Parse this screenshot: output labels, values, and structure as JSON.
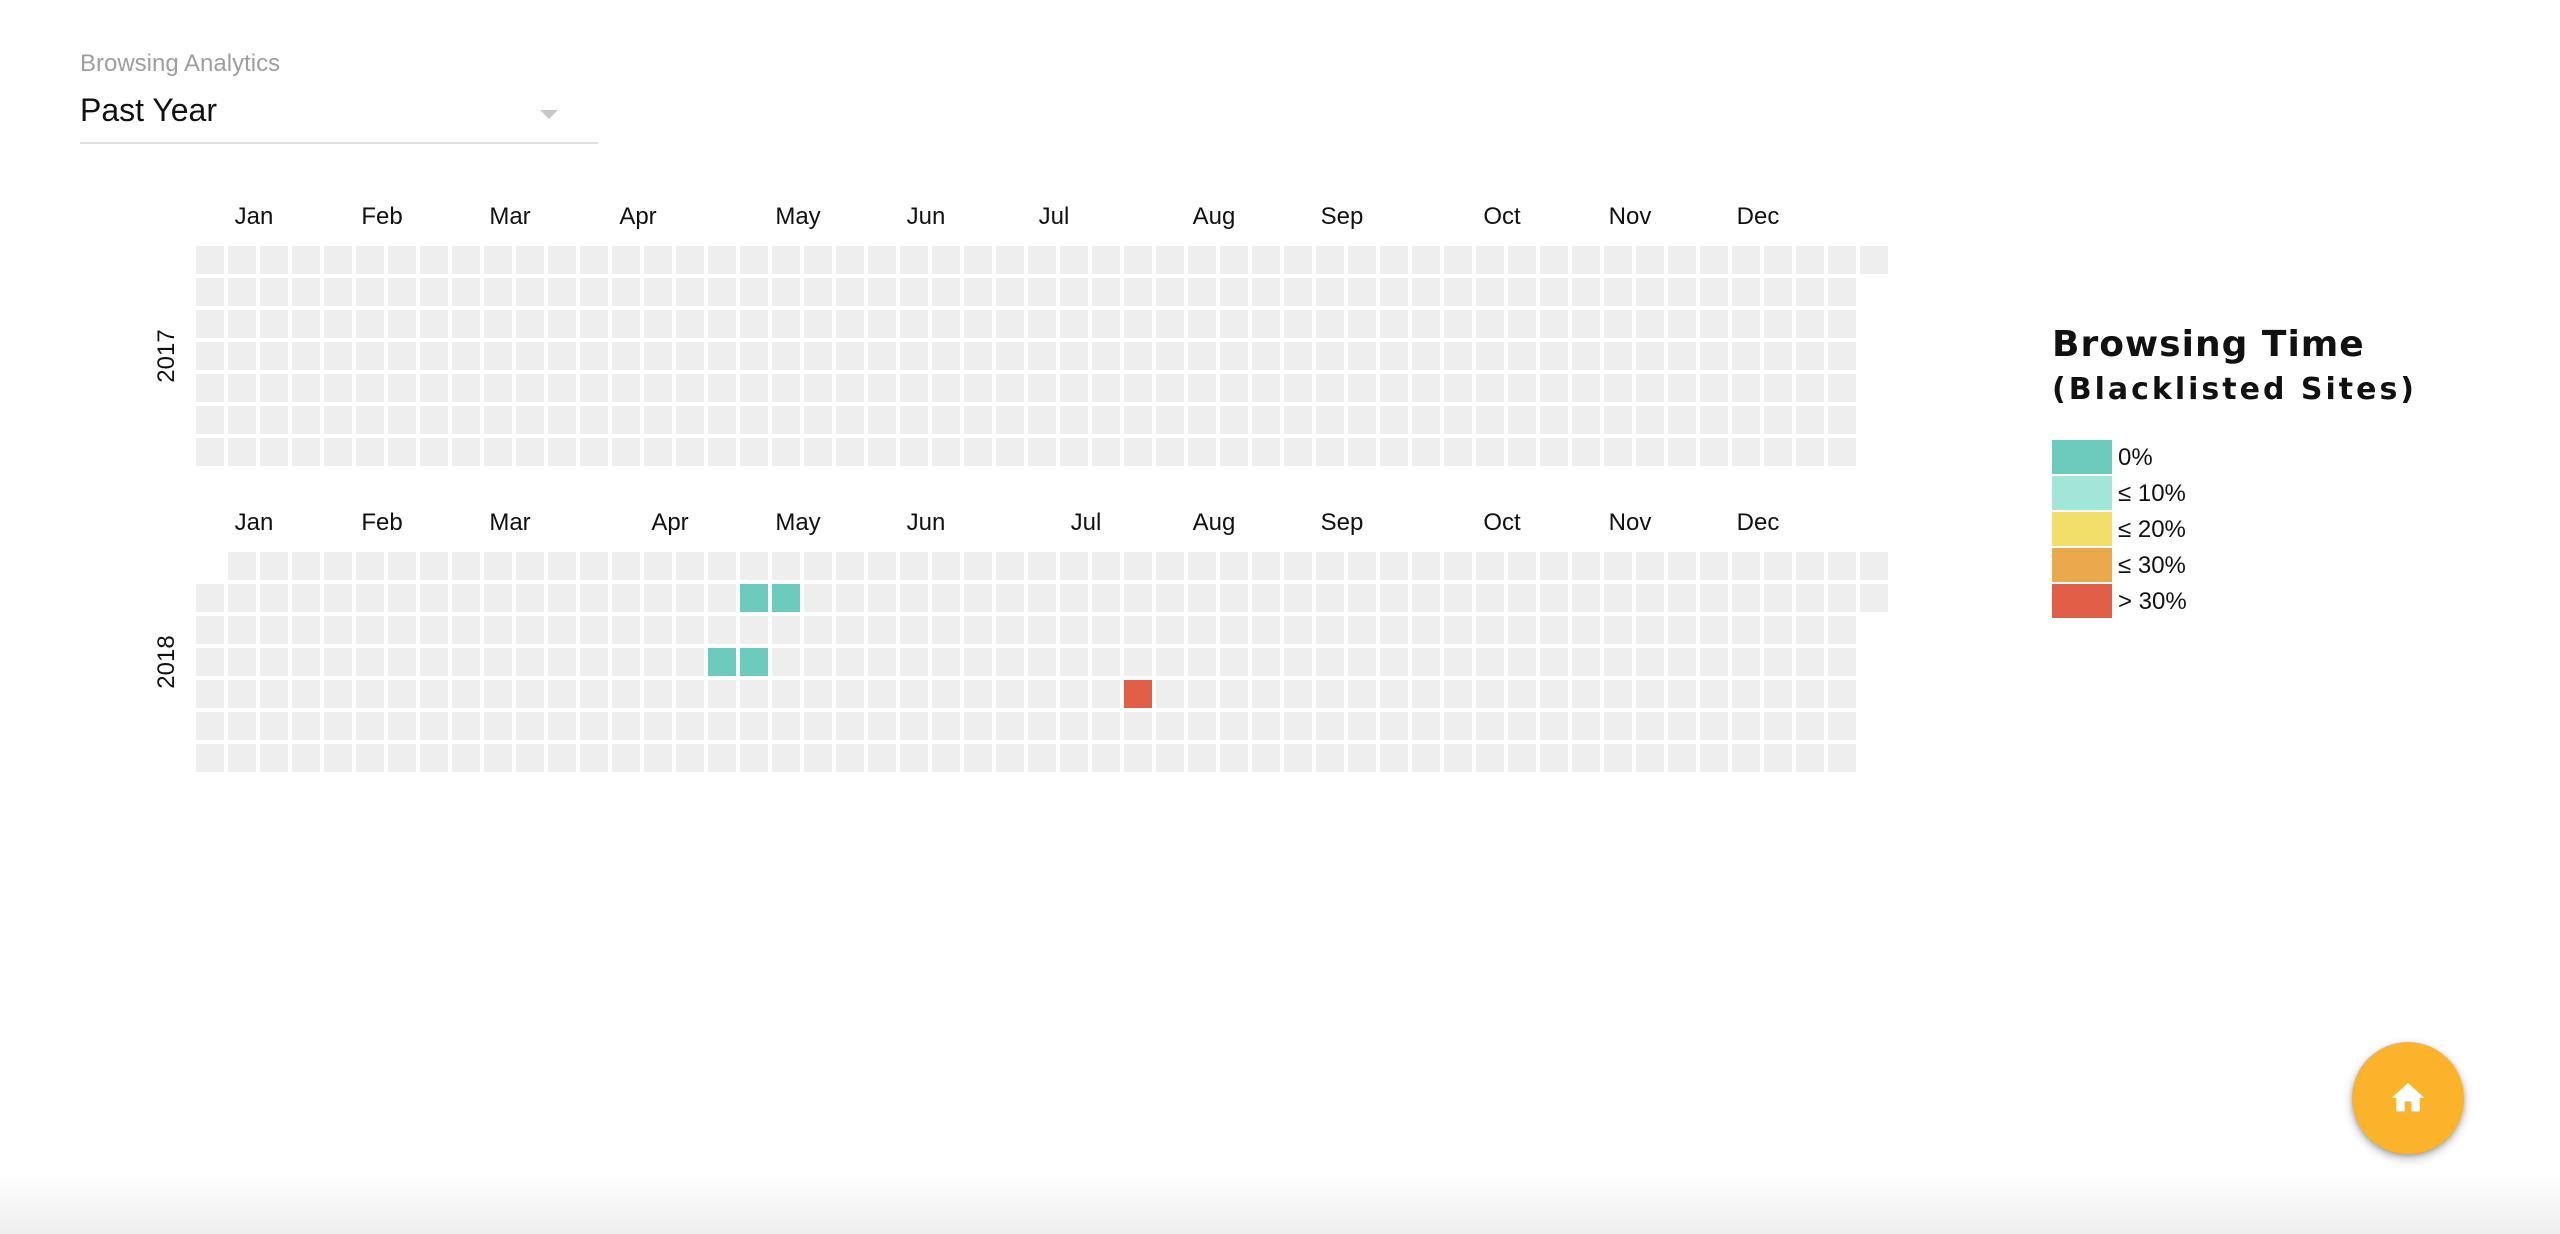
{
  "analytics_select": {
    "label": "Browsing Analytics",
    "value": "Past Year",
    "icon": "arrow-drop-down-icon"
  },
  "legend": {
    "title": "Browsing Time",
    "subtitle": "(Blacklisted Sites)",
    "items": [
      {
        "label": "0%",
        "color": "#6ccbbd"
      },
      {
        "label": "≤ 10%",
        "color": "#a2e6d9"
      },
      {
        "label": "≤ 20%",
        "color": "#f1df6a"
      },
      {
        "label": "≤ 30%",
        "color": "#e9a84b"
      },
      {
        "label": "> 30%",
        "color": "#e05f46"
      }
    ]
  },
  "fab": {
    "icon": "home-icon",
    "color": "#fbb32c"
  },
  "colors": {
    "empty_cell": "#eeeeee"
  },
  "chart_data": {
    "type": "heatmap",
    "rows": [
      {
        "year": "2017",
        "months": [
          "Jan",
          "Feb",
          "Mar",
          "Apr",
          "May",
          "Jun",
          "Jul",
          "Aug",
          "Sep",
          "Oct",
          "Nov",
          "Dec"
        ],
        "highlighted_days": []
      },
      {
        "year": "2018",
        "months": [
          "Jan",
          "Feb",
          "Mar",
          "Apr",
          "May",
          "Jun",
          "Jul",
          "Aug",
          "Sep",
          "Oct",
          "Nov",
          "Dec"
        ],
        "highlighted_days": [
          {
            "date": "2018-05-07",
            "category": "0%"
          },
          {
            "date": "2018-04-30",
            "category": "0%"
          },
          {
            "date": "2018-04-25",
            "category": "0%"
          },
          {
            "date": "2018-05-02",
            "category": "0%"
          },
          {
            "date": "2018-07-26",
            "category": "> 30%"
          }
        ]
      }
    ]
  }
}
